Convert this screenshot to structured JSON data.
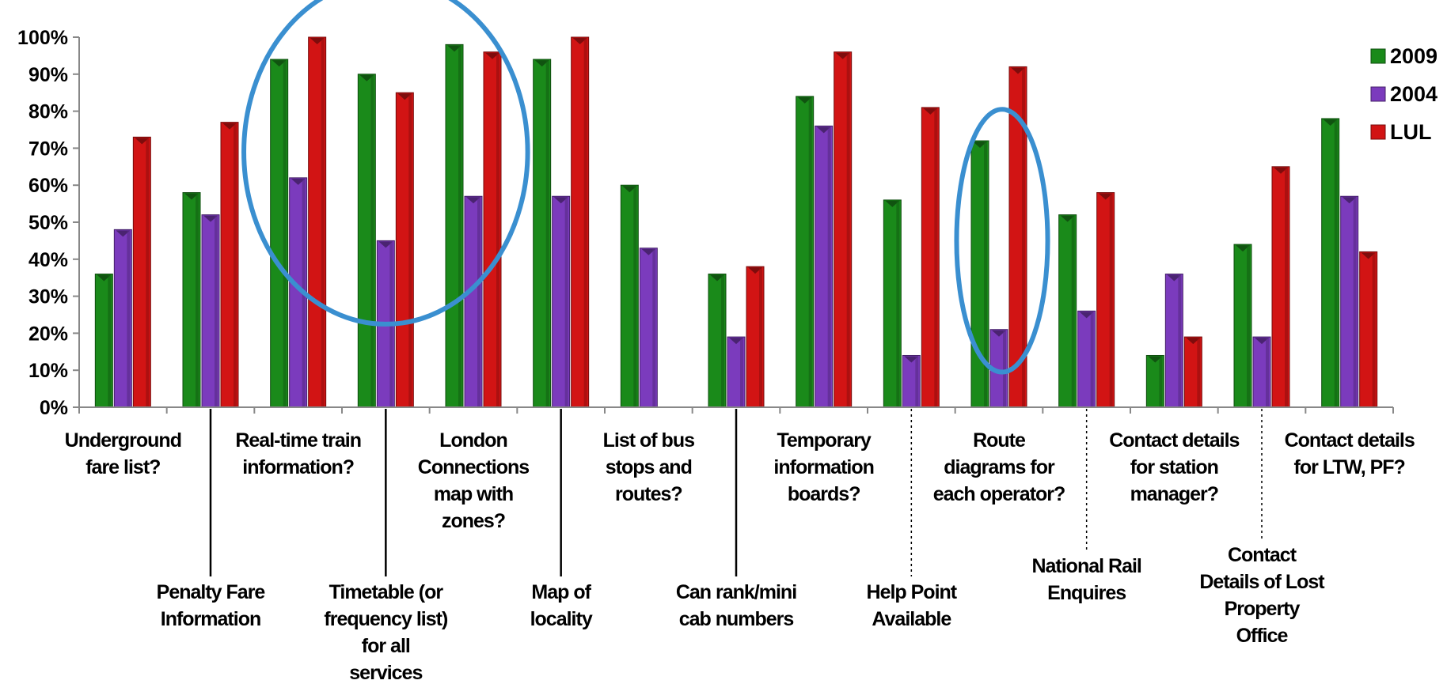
{
  "chart_data": {
    "type": "bar",
    "title": "",
    "xlabel": "",
    "ylabel": "",
    "ylim": [
      0,
      100
    ],
    "yticks": [
      "0%",
      "10%",
      "20%",
      "30%",
      "40%",
      "50%",
      "60%",
      "70%",
      "80%",
      "90%",
      "100%"
    ],
    "legend_position": "top-right",
    "grid": false,
    "categories": [
      "Underground fare list?",
      "Penalty Fare Information",
      "Real-time train information?",
      "Timetable (or frequency list) for all services",
      "London Connections map with zones?",
      "Map of locality",
      "List of bus stops and routes?",
      "Can rank/mini cab numbers",
      "Temporary information boards?",
      "Help Point Available",
      "Route diagrams for each operator?",
      "National Rail Enquires",
      "Contact details for station manager?",
      "Contact Details of Lost Property Office",
      "Contact details for LTW, PF?"
    ],
    "category_label_lines": [
      [
        "Underground",
        "fare list?"
      ],
      [
        "Penalty Fare",
        "Information"
      ],
      [
        "Real-time train",
        "information?"
      ],
      [
        "Timetable (or",
        "frequency list)",
        "for all",
        "services"
      ],
      [
        "London",
        "Connections",
        "map with",
        "zones?"
      ],
      [
        "Map of",
        "locality"
      ],
      [
        "List of bus",
        "stops and",
        "routes?"
      ],
      [
        "Can rank/mini",
        "cab  numbers"
      ],
      [
        "Temporary",
        "information",
        "boards?"
      ],
      [
        "Help Point",
        "Available"
      ],
      [
        "Route",
        "diagrams for",
        "each operator?"
      ],
      [
        "National Rail",
        "Enquires"
      ],
      [
        "Contact details",
        "for station",
        "manager?"
      ],
      [
        "Contact",
        "Details of Lost",
        "Property",
        "Office"
      ],
      [
        "Contact details",
        "for LTW, PF?"
      ]
    ],
    "series": [
      {
        "name": "2009",
        "color": "#1a8a1a",
        "values": [
          36,
          58,
          94,
          90,
          98,
          94,
          60,
          36,
          84,
          56,
          72,
          52,
          14,
          44,
          78
        ]
      },
      {
        "name": "2004",
        "color": "#7b3bbd",
        "values": [
          48,
          52,
          62,
          45,
          57,
          57,
          43,
          19,
          76,
          14,
          21,
          26,
          36,
          19,
          57
        ]
      },
      {
        "name": "LUL",
        "color": "#d21414",
        "values": [
          73,
          77,
          100,
          85,
          96,
          100,
          null,
          38,
          96,
          81,
          92,
          58,
          19,
          65,
          42
        ]
      }
    ],
    "annotations": [
      {
        "shape": "ellipse",
        "color": "#3a8fd0",
        "encloses": [
          "Real-time train information?",
          "Timetable (or frequency list) for all services",
          "London Connections map with zones?"
        ]
      },
      {
        "shape": "ellipse",
        "color": "#3a8fd0",
        "encloses": [
          "Route diagrams for each operator?"
        ]
      }
    ]
  }
}
